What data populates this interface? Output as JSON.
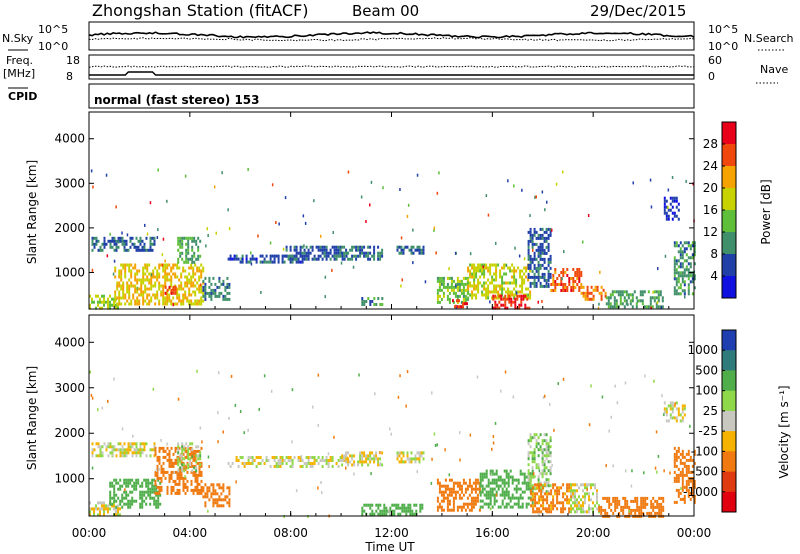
{
  "header": {
    "station": "Zhongshan Station (fitACF)",
    "beam": "Beam 00",
    "date": "29/Dec/2015",
    "cpid_label": "CPID",
    "mode": "normal (fast stereo) 153"
  },
  "top_panels": {
    "nsky_label": "N.Sky",
    "nsearch_label": "N.Search",
    "freq_label_line1": "Freq.",
    "freq_label_line2": "[MHz]",
    "nave_label": "Nave",
    "nsky_ticks": [
      "10^5",
      "10^0"
    ],
    "nsearch_ticks": [
      "10^5",
      "10^0"
    ],
    "freq_ticks": [
      "18",
      "8"
    ],
    "nave_ticks": [
      "60",
      "0"
    ]
  },
  "power_colorbar": {
    "label": "Power [dB]",
    "ticks": [
      "28",
      "24",
      "20",
      "16",
      "12",
      "8",
      "4"
    ],
    "colors": [
      "#e8001a",
      "#f0480c",
      "#f5a300",
      "#c7d200",
      "#5fbf3a",
      "#3f8f6a",
      "#2040a8",
      "#1010e0"
    ]
  },
  "velocity_colorbar": {
    "label": "Velocity [m s⁻¹]",
    "ticks": [
      "1000",
      "500",
      "100",
      "25",
      "-25",
      "-100",
      "-500",
      "-1000"
    ],
    "colors": [
      "#1f3fb0",
      "#2f7a7a",
      "#4fae4a",
      "#8fd84a",
      "#c8c8c0",
      "#f5b300",
      "#f07a10",
      "#e03a10",
      "#e00010"
    ]
  },
  "axes": {
    "ylabel": "Slant Range [km]",
    "xlabel": "Time UT",
    "y_ticks": [
      "4000",
      "3000",
      "2000",
      "1000"
    ],
    "x_ticks": [
      "00:00",
      "04:00",
      "08:00",
      "12:00",
      "16:00",
      "20:00",
      "00:00"
    ]
  },
  "chart_data": [
    {
      "type": "heatmap",
      "title": "Power",
      "xlabel": "",
      "ylabel": "Slant Range [km]",
      "x_unit": "hours UT",
      "xlim": [
        0,
        24
      ],
      "ylim": [
        180,
        4600
      ],
      "colorbar_label": "Power [dB]",
      "colorbar_range": [
        0,
        30
      ],
      "patches": [
        {
          "t": [
            0.1,
            2.6
          ],
          "r": [
            1500,
            1800
          ],
          "v": 7
        },
        {
          "t": [
            0.0,
            1.2
          ],
          "r": [
            200,
            500
          ],
          "v": 16
        },
        {
          "t": [
            1.0,
            4.5
          ],
          "r": [
            300,
            1200
          ],
          "v": 20
        },
        {
          "t": [
            3.0,
            3.4
          ],
          "r": [
            500,
            700
          ],
          "v": 27
        },
        {
          "t": [
            3.5,
            4.4
          ],
          "r": [
            1200,
            1800
          ],
          "v": 12
        },
        {
          "t": [
            4.5,
            5.6
          ],
          "r": [
            400,
            900
          ],
          "v": 9
        },
        {
          "t": [
            5.5,
            8.5
          ],
          "r": [
            1200,
            1400
          ],
          "v": 6
        },
        {
          "t": [
            7.8,
            10.2
          ],
          "r": [
            1300,
            1600
          ],
          "v": 7
        },
        {
          "t": [
            10.0,
            11.6
          ],
          "r": [
            1300,
            1600
          ],
          "v": 8
        },
        {
          "t": [
            10.8,
            11.6
          ],
          "r": [
            250,
            450
          ],
          "v": 10
        },
        {
          "t": [
            12.2,
            13.3
          ],
          "r": [
            1400,
            1600
          ],
          "v": 8
        },
        {
          "t": [
            13.8,
            15.0
          ],
          "r": [
            300,
            900
          ],
          "v": 14
        },
        {
          "t": [
            14.4,
            15.0
          ],
          "r": [
            200,
            400
          ],
          "v": 28
        },
        {
          "t": [
            15.0,
            17.5
          ],
          "r": [
            400,
            1200
          ],
          "v": 18
        },
        {
          "t": [
            16.0,
            17.5
          ],
          "r": [
            200,
            500
          ],
          "v": 28
        },
        {
          "t": [
            17.4,
            18.3
          ],
          "r": [
            700,
            2000
          ],
          "v": 7
        },
        {
          "t": [
            18.3,
            19.5
          ],
          "r": [
            600,
            1100
          ],
          "v": 26
        },
        {
          "t": [
            19.5,
            20.5
          ],
          "r": [
            400,
            700
          ],
          "v": 24
        },
        {
          "t": [
            20.5,
            22.8
          ],
          "r": [
            200,
            600
          ],
          "v": 11
        },
        {
          "t": [
            22.8,
            23.4
          ],
          "r": [
            2200,
            2700
          ],
          "v": 5
        },
        {
          "t": [
            23.2,
            24.0
          ],
          "r": [
            500,
            1700
          ],
          "v": 10
        }
      ]
    },
    {
      "type": "heatmap",
      "title": "Velocity",
      "xlabel": "Time UT",
      "ylabel": "Slant Range [km]",
      "x_unit": "hours UT",
      "xlim": [
        0,
        24
      ],
      "ylim": [
        180,
        4600
      ],
      "colorbar_label": "Velocity [m s⁻¹]",
      "colorbar_range": [
        -1000,
        1000
      ],
      "patches": [
        {
          "t": [
            0.1,
            2.6
          ],
          "r": [
            1500,
            1800
          ],
          "v": 0
        },
        {
          "t": [
            0.0,
            1.2
          ],
          "r": [
            200,
            500
          ],
          "v": 0
        },
        {
          "t": [
            0.8,
            2.8
          ],
          "r": [
            400,
            1000
          ],
          "v": 300
        },
        {
          "t": [
            2.6,
            4.5
          ],
          "r": [
            700,
            1700
          ],
          "v": -300
        },
        {
          "t": [
            3.5,
            4.4
          ],
          "r": [
            1200,
            1800
          ],
          "v": 60
        },
        {
          "t": [
            4.5,
            5.6
          ],
          "r": [
            400,
            900
          ],
          "v": -200
        },
        {
          "t": [
            5.5,
            10.2
          ],
          "r": [
            1300,
            1500
          ],
          "v": 0
        },
        {
          "t": [
            10.0,
            11.6
          ],
          "r": [
            1300,
            1600
          ],
          "v": 0
        },
        {
          "t": [
            10.8,
            13.2
          ],
          "r": [
            250,
            450
          ],
          "v": 300
        },
        {
          "t": [
            12.2,
            13.3
          ],
          "r": [
            1400,
            1600
          ],
          "v": 0
        },
        {
          "t": [
            13.8,
            15.5
          ],
          "r": [
            300,
            1000
          ],
          "v": -400
        },
        {
          "t": [
            15.5,
            17.6
          ],
          "r": [
            400,
            1200
          ],
          "v": 200
        },
        {
          "t": [
            17.4,
            18.3
          ],
          "r": [
            700,
            2000
          ],
          "v": 60
        },
        {
          "t": [
            17.5,
            19.2
          ],
          "r": [
            300,
            900
          ],
          "v": -150
        },
        {
          "t": [
            19.0,
            20.2
          ],
          "r": [
            300,
            900
          ],
          "v": 0
        },
        {
          "t": [
            20.2,
            22.8
          ],
          "r": [
            200,
            600
          ],
          "v": -300
        },
        {
          "t": [
            22.8,
            23.6
          ],
          "r": [
            2300,
            2700
          ],
          "v": 0
        },
        {
          "t": [
            23.2,
            24.0
          ],
          "r": [
            500,
            1700
          ],
          "v": -400
        }
      ]
    }
  ]
}
